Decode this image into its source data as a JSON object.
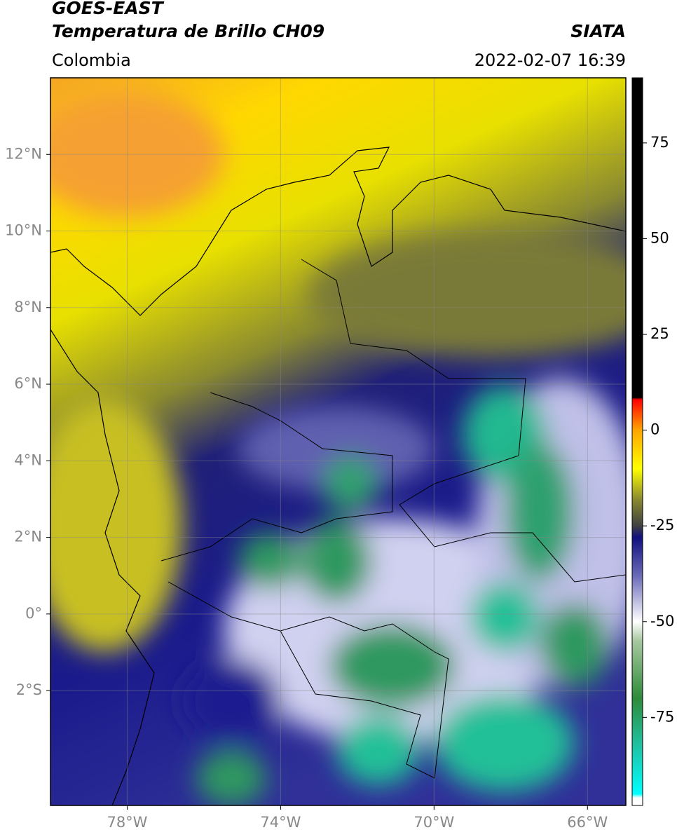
{
  "header": {
    "title": "GOES-EAST",
    "subtitle": "Temperatura de Brillo CH09",
    "source": "SIATA",
    "region": "Colombia",
    "datetime": "2022-02-07 16:39"
  },
  "map": {
    "xlim": [
      -80,
      -65
    ],
    "ylim": [
      -5,
      14
    ],
    "grid": true,
    "xticks": [
      {
        "value": -78,
        "label": "78°W"
      },
      {
        "value": -74,
        "label": "74°W"
      },
      {
        "value": -70,
        "label": "70°W"
      },
      {
        "value": -66,
        "label": "66°W"
      }
    ],
    "yticks": [
      {
        "value": 12,
        "label": "12°N"
      },
      {
        "value": 10,
        "label": "10°N"
      },
      {
        "value": 8,
        "label": "8°N"
      },
      {
        "value": 6,
        "label": "6°N"
      },
      {
        "value": 4,
        "label": "4°N"
      },
      {
        "value": 2,
        "label": "2°N"
      },
      {
        "value": 0,
        "label": "0°"
      },
      {
        "value": -2,
        "label": "2°S"
      }
    ]
  },
  "colorbar": {
    "lim": [
      -98,
      92
    ],
    "ticks": [
      75,
      50,
      25,
      0,
      -25,
      -50,
      -75
    ],
    "colormap": [
      {
        "value": -98,
        "color": "#ffffff"
      },
      {
        "value": -96,
        "color": "#ffffff"
      },
      {
        "value": -95,
        "color": "#00ffff"
      },
      {
        "value": -82,
        "color": "#20c0a0"
      },
      {
        "value": -70,
        "color": "#2e8b3a"
      },
      {
        "value": -55,
        "color": "#a8c8a0"
      },
      {
        "value": -50,
        "color": "#ffffff"
      },
      {
        "value": -38,
        "color": "#6a6ab8"
      },
      {
        "value": -28,
        "color": "#101080"
      },
      {
        "value": -25,
        "color": "#404040"
      },
      {
        "value": -18,
        "color": "#8a8a30"
      },
      {
        "value": -10,
        "color": "#ffff00"
      },
      {
        "value": 0,
        "color": "#ffa500"
      },
      {
        "value": 8,
        "color": "#ff0000"
      },
      {
        "value": 8.5,
        "color": "#000000"
      },
      {
        "value": 92,
        "color": "#000000"
      }
    ]
  }
}
